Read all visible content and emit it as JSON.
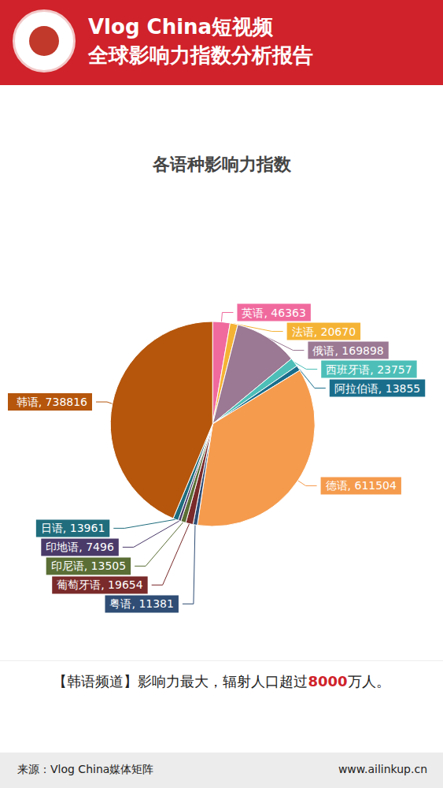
{
  "header": {
    "title_lines": [
      "Vlog China短视频",
      "全球影响力指数分析报告"
    ]
  },
  "chart_data": {
    "type": "pie",
    "title": "各语种影响力指数",
    "categories": [
      "英语",
      "法语",
      "俄语",
      "西班牙语",
      "阿拉伯语",
      "德语",
      "粤语",
      "葡萄牙语",
      "印尼语",
      "印地语",
      "日语",
      "韩语"
    ],
    "values": [
      46363,
      20670,
      169898,
      23757,
      13855,
      611504,
      11381,
      19654,
      13505,
      7496,
      13961,
      738816
    ],
    "value_labels": [
      "英语, 46363",
      "法语, 20670",
      "俄语, 169898",
      "西班牙语, 23757",
      "阿拉伯语, 13855",
      "德语, 611504",
      "粤语, 11381",
      "葡萄牙语, 19654",
      "印尼语, 13505",
      "印地语, 7496",
      "日语, 13961",
      "韩语, 738816"
    ],
    "colors": [
      "#f06a9e",
      "#f5b335",
      "#9b7893",
      "#4dbfb8",
      "#1a6e8c",
      "#f59b4d",
      "#2f4d75",
      "#7a2a2a",
      "#5a6e35",
      "#4a3a6a",
      "#1f6d7d",
      "#b5560c"
    ],
    "data_labels": true
  },
  "caption": {
    "before": "【韩语频道】影响力最大，辐射人口超过",
    "highlight": "8000",
    "after": "万人。"
  },
  "footer": {
    "source": "来源：Vlog China媒体矩阵",
    "url": "www.ailinkup.cn"
  }
}
